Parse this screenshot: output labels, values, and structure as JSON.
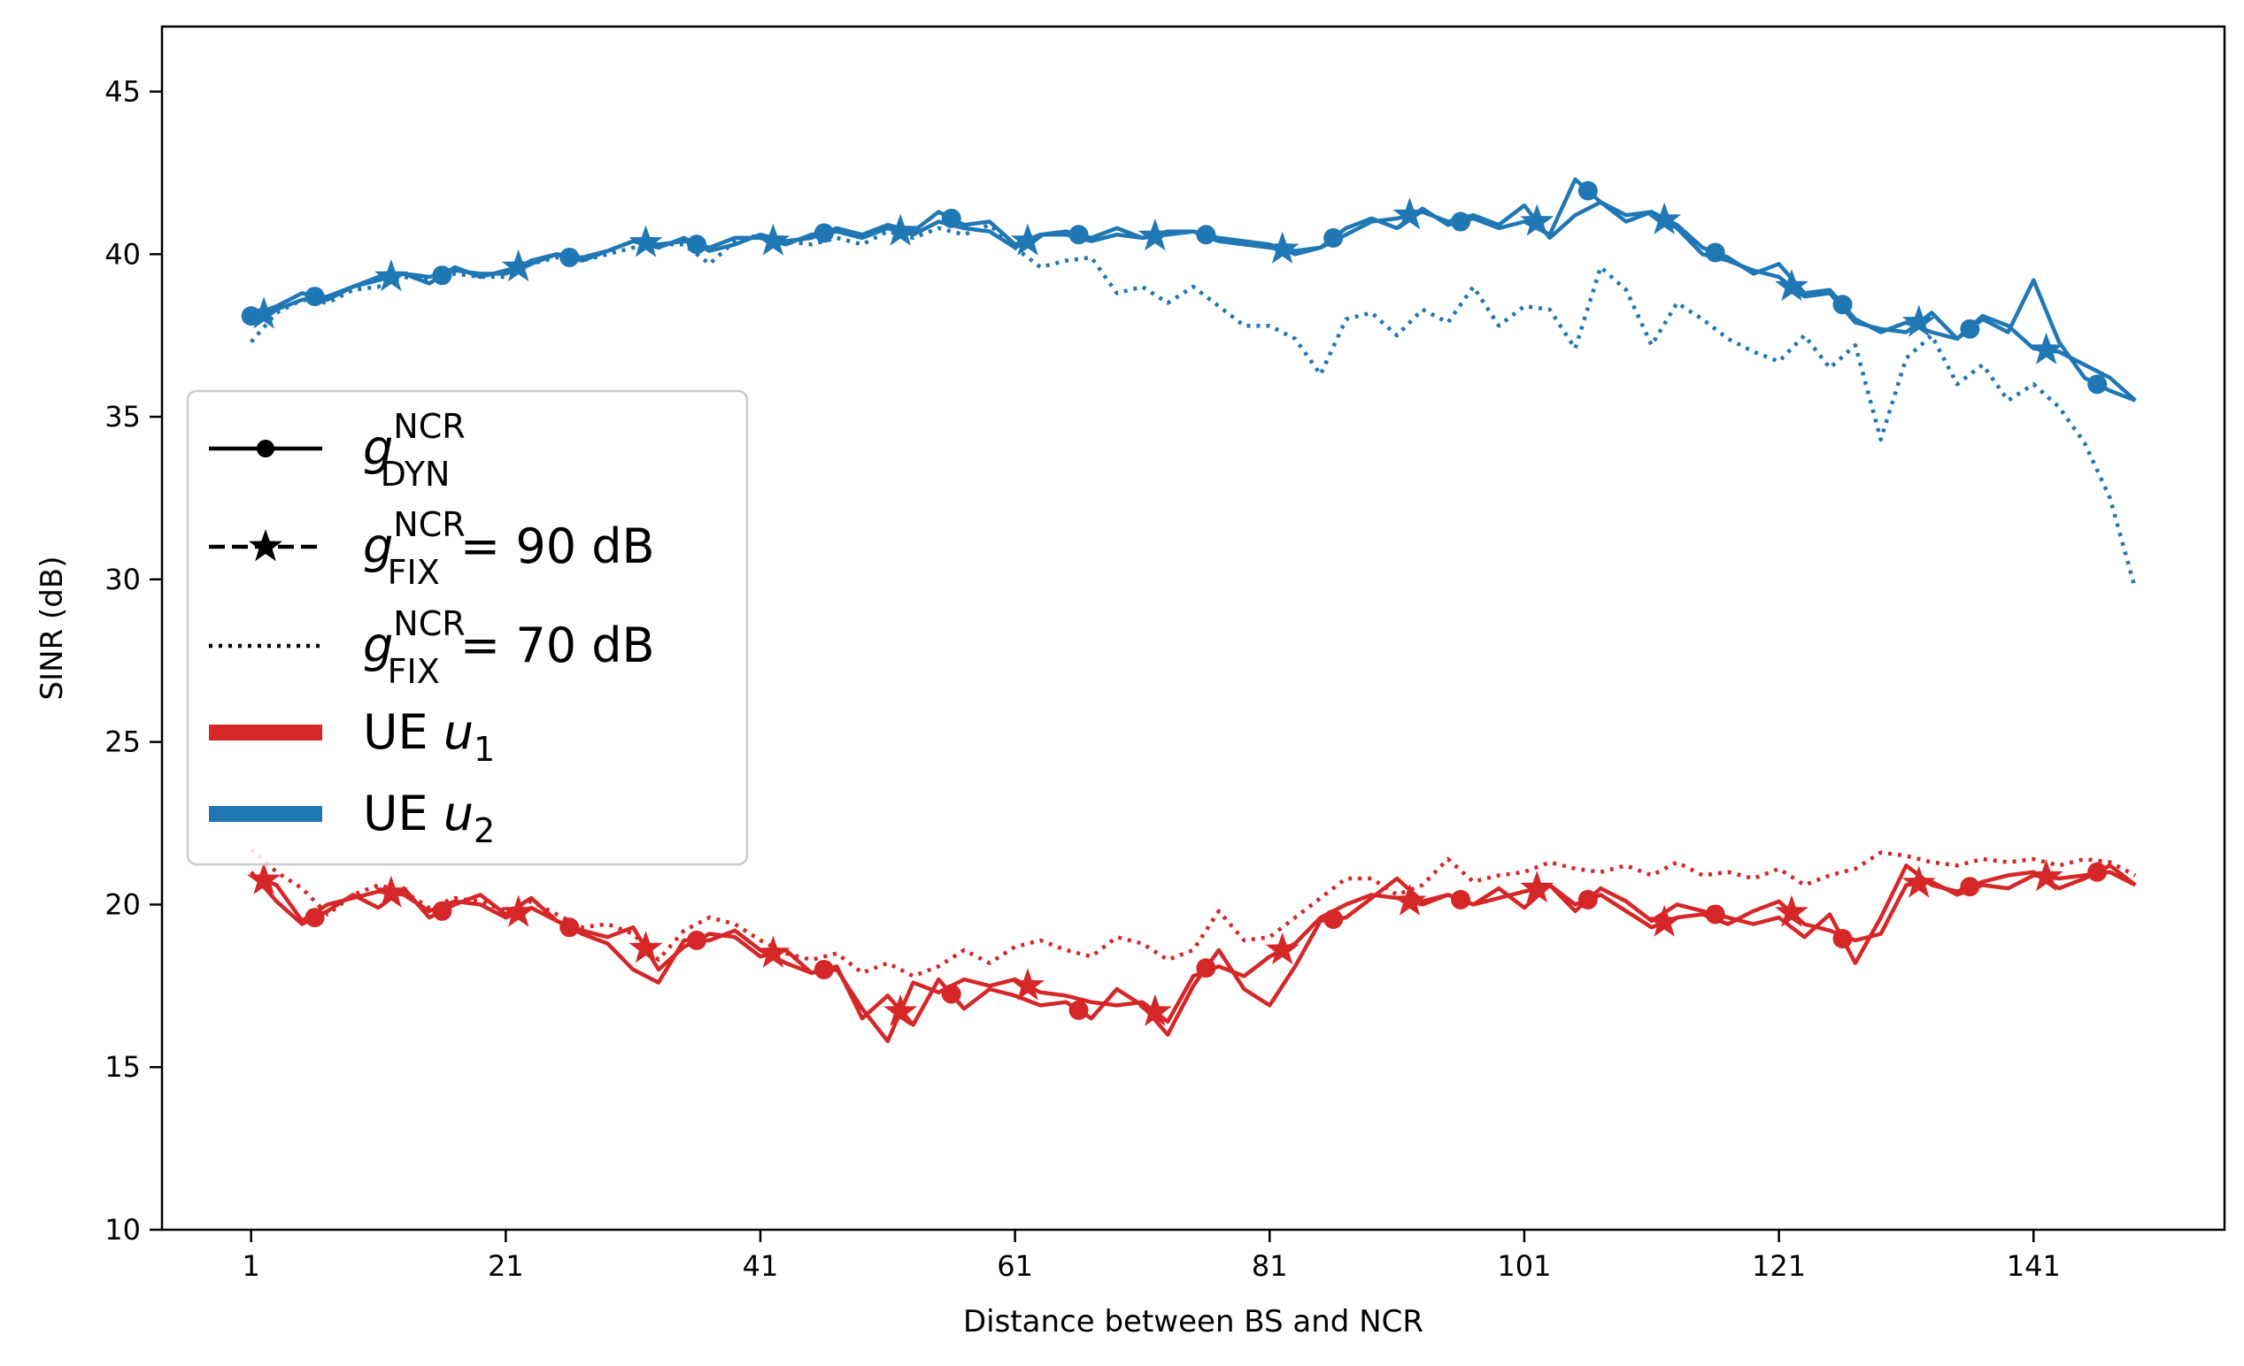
{
  "chart_data": {
    "type": "line",
    "xlabel": "Distance between BS and NCR",
    "ylabel": "SINR (dB)",
    "xlim": [
      -6,
      156
    ],
    "ylim": [
      10,
      47
    ],
    "xticks": [
      1,
      21,
      41,
      61,
      81,
      101,
      121,
      141
    ],
    "yticks": [
      10,
      15,
      20,
      25,
      30,
      35,
      40,
      45
    ],
    "colors": {
      "u1": "#d62728",
      "u2": "#1f77b4",
      "legend_black": "#000000"
    },
    "legend": {
      "position": "center-left",
      "entries": [
        {
          "key": "dyn",
          "symbol": "g",
          "sub": "DYN",
          "sup": "NCR",
          "suffix": "",
          "style": "solid-circle"
        },
        {
          "key": "fix90",
          "symbol": "g",
          "sub": "FIX",
          "sup": "NCR",
          "suffix": " = 90 dB",
          "style": "dashed-star"
        },
        {
          "key": "fix70",
          "symbol": "g",
          "sub": "FIX",
          "sup": "NCR",
          "suffix": " = 70 dB",
          "style": "dotted"
        },
        {
          "key": "u1",
          "label": "UE ",
          "var": "u",
          "sub": "1",
          "color": "#d62728"
        },
        {
          "key": "u2",
          "label": "UE ",
          "var": "u",
          "sub": "2",
          "color": "#1f77b4"
        }
      ]
    },
    "series": [
      {
        "name": "UE u2 g_DYN",
        "ue": "u2",
        "style": "solid",
        "marker": "circle",
        "x": [
          1,
          3,
          5,
          7,
          9,
          11,
          13,
          15,
          17,
          19,
          21,
          23,
          25,
          27,
          29,
          31,
          33,
          35,
          37,
          39,
          41,
          43,
          45,
          47,
          49,
          51,
          53,
          55,
          57,
          59,
          61,
          63,
          65,
          67,
          69,
          71,
          73,
          75,
          77,
          79,
          81,
          83,
          85,
          87,
          89,
          91,
          93,
          95,
          97,
          99,
          101,
          103,
          105,
          107,
          109,
          111,
          113,
          115,
          117,
          119,
          121,
          123,
          125,
          127,
          129,
          131,
          133,
          135,
          137,
          139,
          141,
          143,
          145,
          147,
          149
        ],
        "y": [
          38.1,
          38.4,
          38.8,
          38.6,
          39.0,
          39.3,
          39.4,
          39.1,
          39.6,
          39.3,
          39.5,
          39.7,
          40.0,
          39.8,
          40.1,
          40.4,
          40.2,
          40.5,
          40.1,
          40.3,
          40.6,
          40.4,
          40.5,
          40.8,
          40.6,
          40.9,
          40.7,
          41.3,
          40.9,
          41.0,
          40.3,
          40.6,
          40.7,
          40.5,
          40.8,
          40.5,
          40.7,
          40.7,
          40.5,
          40.4,
          40.3,
          40.0,
          40.2,
          40.8,
          41.1,
          40.8,
          41.4,
          40.9,
          41.1,
          40.8,
          41.0,
          40.6,
          42.3,
          41.6,
          41.0,
          41.3,
          40.9,
          40.2,
          39.9,
          39.4,
          39.7,
          38.8,
          38.9,
          38.0,
          37.6,
          37.9,
          37.6,
          37.4,
          38.0,
          37.6,
          39.2,
          37.3,
          36.2,
          35.8,
          35.5
        ],
        "markers_x": [
          1,
          6,
          16,
          26,
          36,
          46,
          56,
          66,
          76,
          86,
          96,
          106,
          116,
          126,
          136,
          146
        ]
      },
      {
        "name": "UE u2 g_FIX 90 dB",
        "ue": "u2",
        "style": "solid",
        "marker": "star",
        "x": [
          1,
          3,
          5,
          7,
          9,
          11,
          13,
          15,
          17,
          19,
          21,
          23,
          25,
          27,
          29,
          31,
          33,
          35,
          37,
          39,
          41,
          43,
          45,
          47,
          49,
          51,
          53,
          55,
          57,
          59,
          61,
          63,
          65,
          67,
          69,
          71,
          73,
          75,
          77,
          79,
          81,
          83,
          85,
          87,
          89,
          91,
          93,
          95,
          97,
          99,
          101,
          103,
          105,
          107,
          109,
          111,
          113,
          115,
          117,
          119,
          121,
          123,
          125,
          127,
          129,
          131,
          133,
          135,
          137,
          139,
          141,
          143,
          145,
          147,
          149
        ],
        "y": [
          38.0,
          38.3,
          38.6,
          38.7,
          39.0,
          39.2,
          39.4,
          39.3,
          39.5,
          39.4,
          39.4,
          39.8,
          40.0,
          39.9,
          40.1,
          40.4,
          40.3,
          40.4,
          40.2,
          40.5,
          40.5,
          40.3,
          40.6,
          40.7,
          40.5,
          40.8,
          40.6,
          41.0,
          40.8,
          40.7,
          40.2,
          40.6,
          40.6,
          40.4,
          40.6,
          40.5,
          40.6,
          40.7,
          40.4,
          40.3,
          40.2,
          40.1,
          40.2,
          40.6,
          41.0,
          41.1,
          41.3,
          41.0,
          41.2,
          40.9,
          41.5,
          40.5,
          41.2,
          41.6,
          41.2,
          41.3,
          40.8,
          40.0,
          39.8,
          39.5,
          39.3,
          38.7,
          38.8,
          37.9,
          37.7,
          37.6,
          38.2,
          37.4,
          38.1,
          37.8,
          37.1,
          37.0,
          36.6,
          36.2,
          35.5
        ],
        "markers_x": [
          2,
          12,
          22,
          32,
          42,
          52,
          62,
          72,
          82,
          92,
          102,
          112,
          122,
          132,
          142
        ]
      },
      {
        "name": "UE u2 g_FIX 70 dB",
        "ue": "u2",
        "style": "dotted",
        "marker": "none",
        "x": [
          1,
          3,
          5,
          7,
          9,
          11,
          13,
          15,
          17,
          19,
          21,
          23,
          25,
          27,
          29,
          31,
          33,
          35,
          37,
          39,
          41,
          43,
          45,
          47,
          49,
          51,
          53,
          55,
          57,
          59,
          61,
          63,
          65,
          67,
          69,
          71,
          73,
          75,
          77,
          79,
          81,
          83,
          85,
          87,
          89,
          91,
          93,
          95,
          97,
          99,
          101,
          103,
          105,
          107,
          109,
          111,
          113,
          115,
          117,
          119,
          121,
          123,
          125,
          127,
          129,
          131,
          133,
          135,
          137,
          139,
          141,
          143,
          145,
          147,
          149
        ],
        "y": [
          37.3,
          38.2,
          38.6,
          38.5,
          38.9,
          39.0,
          39.3,
          39.2,
          39.4,
          39.3,
          39.3,
          39.7,
          39.9,
          39.8,
          40.0,
          40.2,
          40.3,
          40.3,
          39.7,
          40.4,
          40.6,
          40.4,
          40.3,
          40.5,
          40.3,
          40.7,
          40.5,
          40.8,
          40.6,
          40.9,
          40.2,
          39.6,
          39.8,
          39.9,
          38.8,
          39.0,
          38.5,
          39.0,
          38.4,
          37.8,
          37.8,
          37.4,
          36.3,
          38.0,
          38.2,
          37.5,
          38.3,
          37.9,
          39.0,
          37.8,
          38.4,
          38.3,
          37.1,
          39.6,
          38.9,
          37.2,
          38.5,
          38.0,
          37.4,
          37.0,
          36.7,
          37.5,
          36.5,
          37.2,
          34.3,
          36.8,
          37.5,
          36.0,
          36.6,
          35.5,
          36.0,
          35.3,
          34.2,
          32.5,
          29.7
        ]
      },
      {
        "name": "UE u1 g_DYN",
        "ue": "u1",
        "style": "solid",
        "marker": "circle",
        "x": [
          1,
          3,
          5,
          7,
          9,
          11,
          13,
          15,
          17,
          19,
          21,
          23,
          25,
          27,
          29,
          31,
          33,
          35,
          37,
          39,
          41,
          43,
          45,
          47,
          49,
          51,
          53,
          55,
          57,
          59,
          61,
          63,
          65,
          67,
          69,
          71,
          73,
          75,
          77,
          79,
          81,
          83,
          85,
          87,
          89,
          91,
          93,
          95,
          97,
          99,
          101,
          103,
          105,
          107,
          109,
          111,
          113,
          115,
          117,
          119,
          121,
          123,
          125,
          127,
          129,
          131,
          133,
          135,
          137,
          139,
          141,
          143,
          145,
          147,
          149
        ],
        "y": [
          21.0,
          20.1,
          19.4,
          19.8,
          20.3,
          19.9,
          20.5,
          19.6,
          20.0,
          20.3,
          19.7,
          20.2,
          19.5,
          19.1,
          18.8,
          18.0,
          17.6,
          18.9,
          18.9,
          19.2,
          18.6,
          18.2,
          17.9,
          18.1,
          16.5,
          17.2,
          16.3,
          17.7,
          16.8,
          17.4,
          17.2,
          16.9,
          17.0,
          16.5,
          17.4,
          16.9,
          16.0,
          17.5,
          18.6,
          17.4,
          16.9,
          18.1,
          19.5,
          19.6,
          20.2,
          20.8,
          20.1,
          20.3,
          20.0,
          20.5,
          19.9,
          20.6,
          19.8,
          20.5,
          20.1,
          19.5,
          20.0,
          19.8,
          19.6,
          19.4,
          19.6,
          19.0,
          19.7,
          18.2,
          19.6,
          21.2,
          20.6,
          20.4,
          20.7,
          20.9,
          21.0,
          20.5,
          20.8,
          21.2,
          20.6
        ],
        "markers_x": [
          6,
          16,
          26,
          36,
          46,
          56,
          66,
          76,
          86,
          96,
          106,
          116,
          126,
          136,
          146
        ]
      },
      {
        "name": "UE u1 g_FIX 90 dB",
        "ue": "u1",
        "style": "solid",
        "marker": "star",
        "x": [
          1,
          3,
          5,
          7,
          9,
          11,
          13,
          15,
          17,
          19,
          21,
          23,
          25,
          27,
          29,
          31,
          33,
          35,
          37,
          39,
          41,
          43,
          45,
          47,
          49,
          51,
          53,
          55,
          57,
          59,
          61,
          63,
          65,
          67,
          69,
          71,
          73,
          75,
          77,
          79,
          81,
          83,
          85,
          87,
          89,
          91,
          93,
          95,
          97,
          99,
          101,
          103,
          105,
          107,
          109,
          111,
          113,
          115,
          117,
          119,
          121,
          123,
          125,
          127,
          129,
          131,
          133,
          135,
          137,
          139,
          141,
          143,
          145,
          147,
          149
        ],
        "y": [
          20.9,
          20.6,
          19.5,
          20.0,
          20.2,
          20.4,
          20.3,
          19.8,
          20.1,
          20.0,
          19.6,
          19.9,
          19.5,
          19.2,
          19.0,
          19.3,
          18.0,
          18.7,
          19.1,
          19.0,
          18.4,
          18.6,
          17.9,
          18.0,
          16.8,
          15.8,
          17.6,
          17.3,
          17.7,
          17.5,
          17.7,
          17.3,
          17.2,
          17.0,
          16.9,
          17.0,
          16.4,
          17.8,
          18.1,
          17.8,
          18.4,
          18.8,
          19.6,
          20.0,
          20.3,
          20.2,
          20.0,
          20.3,
          20.0,
          20.2,
          20.4,
          20.6,
          20.0,
          20.3,
          19.8,
          19.3,
          19.6,
          19.7,
          19.4,
          19.8,
          20.1,
          19.4,
          19.2,
          18.9,
          19.1,
          20.6,
          20.7,
          20.3,
          20.6,
          20.5,
          20.9,
          20.8,
          20.9,
          21.0,
          20.6
        ],
        "markers_x": [
          2,
          12,
          22,
          32,
          42,
          52,
          62,
          72,
          82,
          92,
          102,
          112,
          122,
          132,
          142
        ]
      },
      {
        "name": "UE u1 g_FIX 70 dB",
        "ue": "u1",
        "style": "dotted",
        "marker": "none",
        "x": [
          1,
          3,
          5,
          7,
          9,
          11,
          13,
          15,
          17,
          19,
          21,
          23,
          25,
          27,
          29,
          31,
          33,
          35,
          37,
          39,
          41,
          43,
          45,
          47,
          49,
          51,
          53,
          55,
          57,
          59,
          61,
          63,
          65,
          67,
          69,
          71,
          73,
          75,
          77,
          79,
          81,
          83,
          85,
          87,
          89,
          91,
          93,
          95,
          97,
          99,
          101,
          103,
          105,
          107,
          109,
          111,
          113,
          115,
          117,
          119,
          121,
          123,
          125,
          127,
          129,
          131,
          133,
          135,
          137,
          139,
          141,
          143,
          145,
          147,
          149
        ],
        "y": [
          21.7,
          21.0,
          20.5,
          19.7,
          20.3,
          20.6,
          20.4,
          19.9,
          20.2,
          20.1,
          19.8,
          20.1,
          19.7,
          19.3,
          19.4,
          19.1,
          18.3,
          19.2,
          19.6,
          19.4,
          18.9,
          18.5,
          18.3,
          18.5,
          17.9,
          18.2,
          17.8,
          18.1,
          18.6,
          18.2,
          18.7,
          18.9,
          18.6,
          18.4,
          19.0,
          18.8,
          18.3,
          18.6,
          19.8,
          18.9,
          19.0,
          19.6,
          20.2,
          20.8,
          20.8,
          20.3,
          20.6,
          21.4,
          20.7,
          20.9,
          21.0,
          21.3,
          21.1,
          21.0,
          21.2,
          20.9,
          21.3,
          20.9,
          21.0,
          20.8,
          21.1,
          20.6,
          20.9,
          21.1,
          21.6,
          21.5,
          21.3,
          21.2,
          21.4,
          21.3,
          21.4,
          21.2,
          21.4,
          21.3,
          20.9
        ]
      }
    ]
  }
}
